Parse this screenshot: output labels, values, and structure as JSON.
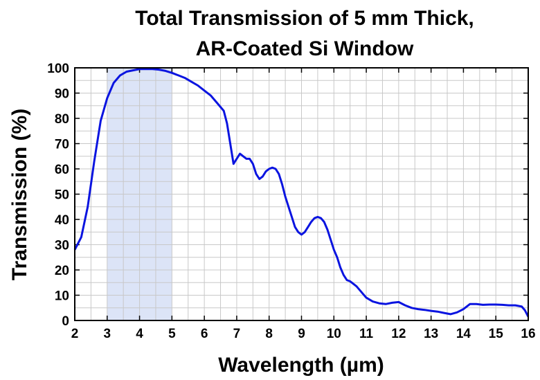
{
  "chart_data": {
    "type": "line",
    "title_lines": [
      "Total Transmission of 5 mm Thick,",
      "AR-Coated Si Window"
    ],
    "xlabel": "Wavelength (µm)",
    "ylabel": "Transmission (%)",
    "xlim": [
      2,
      16
    ],
    "ylim": [
      0,
      100
    ],
    "x_ticks": [
      "2",
      "3",
      "4",
      "5",
      "6",
      "7",
      "8",
      "9",
      "10",
      "11",
      "12",
      "13",
      "14",
      "15",
      "16"
    ],
    "y_ticks": [
      "0",
      "10",
      "20",
      "30",
      "40",
      "50",
      "60",
      "70",
      "80",
      "90",
      "100"
    ],
    "grid": true,
    "highlight_band": {
      "x_start": 3,
      "x_end": 5,
      "color": "#dce4f7"
    },
    "colors": {
      "line": "#0a14e0",
      "grid": "#c8c8c8",
      "band": "#dce4f7",
      "frame": "#000000"
    },
    "series": [
      {
        "x": [
          2.0,
          2.2,
          2.4,
          2.6,
          2.8,
          3.0,
          3.2,
          3.4,
          3.6,
          3.8,
          4.0,
          4.2,
          4.4,
          4.6,
          4.8,
          5.0,
          5.2,
          5.4,
          5.6,
          5.8,
          6.0,
          6.2,
          6.4,
          6.6,
          6.7,
          6.8,
          6.9,
          7.0,
          7.1,
          7.2,
          7.3,
          7.4,
          7.5,
          7.6,
          7.7,
          7.8,
          7.9,
          8.0,
          8.1,
          8.2,
          8.3,
          8.4,
          8.5,
          8.6,
          8.7,
          8.8,
          8.9,
          9.0,
          9.1,
          9.2,
          9.3,
          9.4,
          9.5,
          9.6,
          9.7,
          9.8,
          9.9,
          10.0,
          10.1,
          10.2,
          10.3,
          10.4,
          10.5,
          10.6,
          10.7,
          10.8,
          10.9,
          11.0,
          11.2,
          11.4,
          11.6,
          11.8,
          12.0,
          12.2,
          12.4,
          12.6,
          12.8,
          13.0,
          13.2,
          13.4,
          13.6,
          13.8,
          14.0,
          14.2,
          14.4,
          14.6,
          14.8,
          15.0,
          15.2,
          15.4,
          15.6,
          15.8,
          15.9,
          16.0
        ],
        "values": [
          28,
          33,
          45,
          63,
          79,
          88,
          94,
          97,
          98.5,
          99,
          99.5,
          99.5,
          99.5,
          99.3,
          98.8,
          98,
          97,
          96,
          94.5,
          93,
          91,
          89,
          86,
          83,
          78,
          70,
          62,
          64,
          66,
          65,
          64,
          64,
          62,
          58,
          56,
          57,
          59,
          60,
          60.5,
          60,
          58,
          54,
          49,
          45,
          41,
          37,
          35,
          34,
          35,
          37,
          39,
          40.5,
          41,
          40.5,
          39,
          36,
          32,
          28,
          25,
          21,
          18,
          16,
          15.5,
          14.5,
          13.5,
          12,
          10.5,
          9,
          7.5,
          6.8,
          6.5,
          7,
          7.3,
          6,
          5,
          4.5,
          4.2,
          3.8,
          3.5,
          3,
          2.5,
          3.2,
          4.5,
          6.5,
          6.5,
          6.2,
          6.3,
          6.3,
          6.2,
          6,
          6,
          5.5,
          4,
          1.5
        ]
      }
    ]
  }
}
